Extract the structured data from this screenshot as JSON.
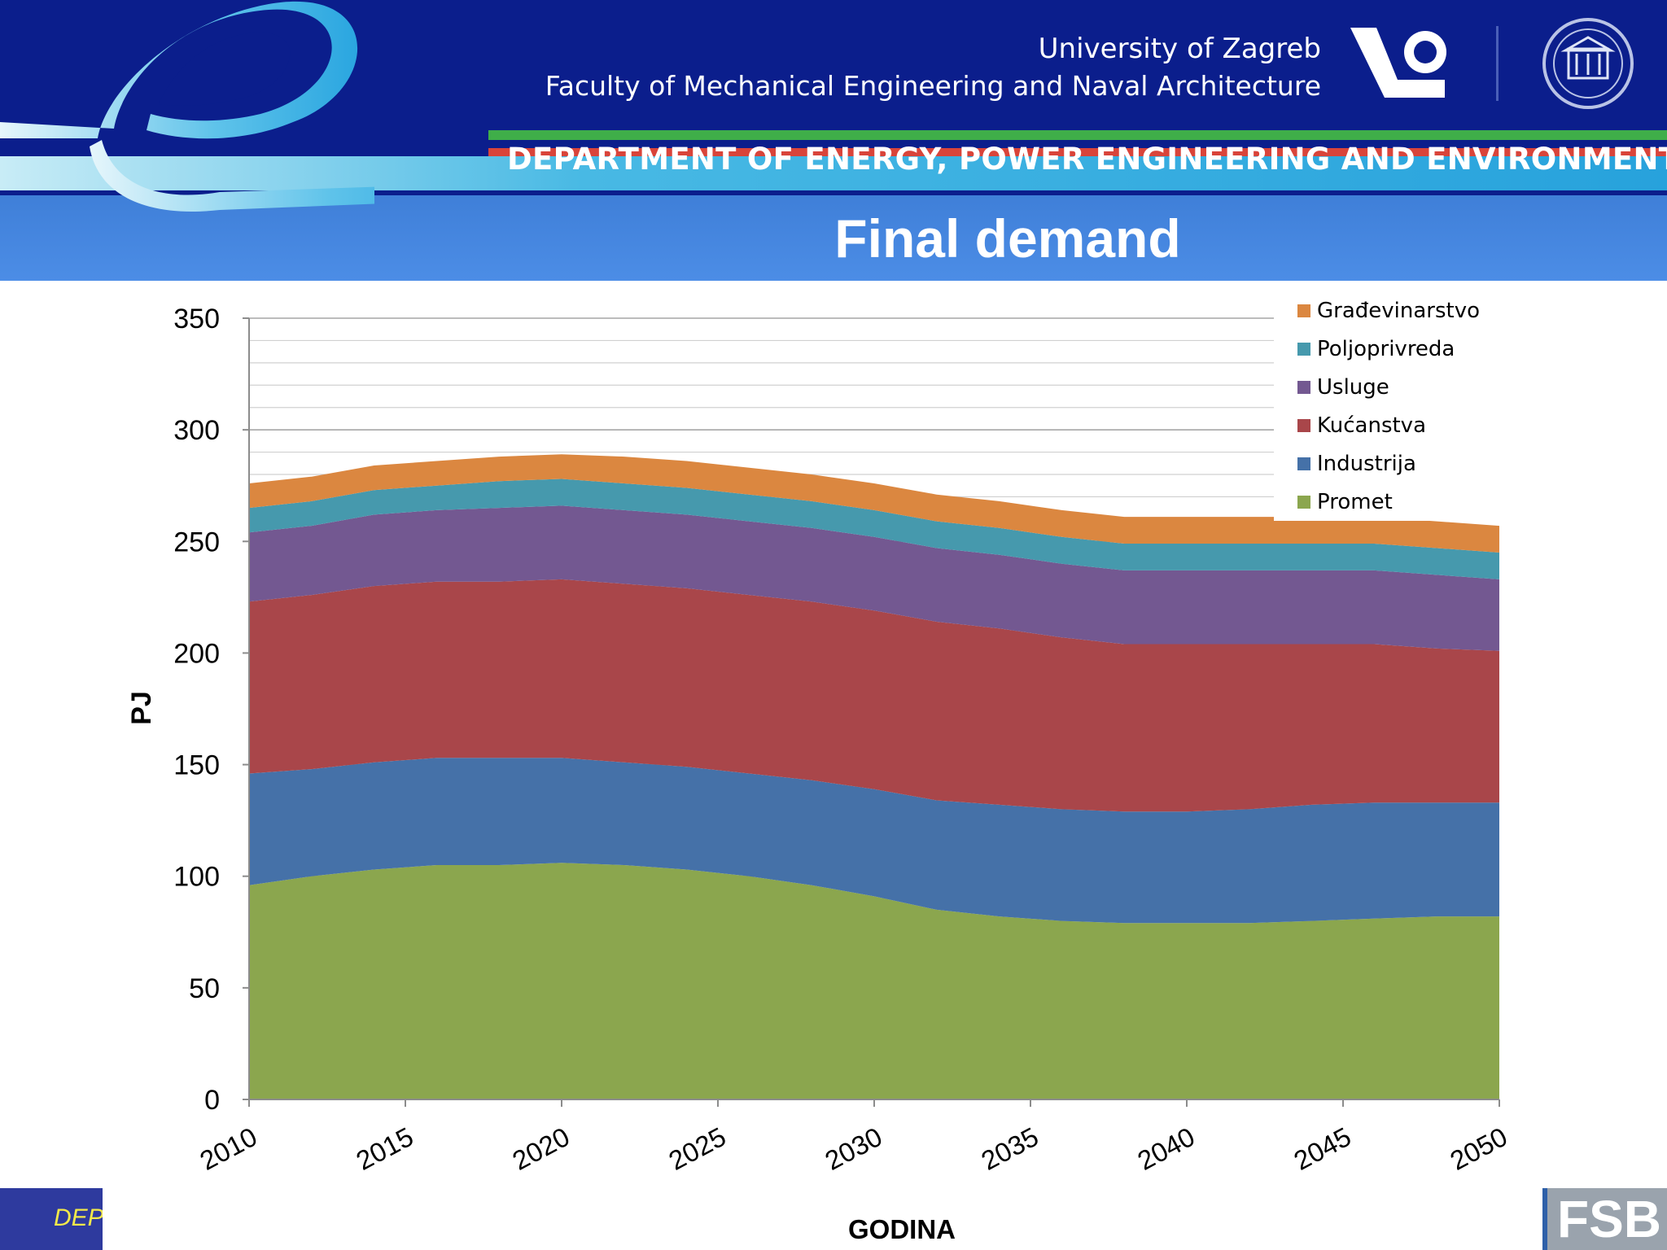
{
  "header": {
    "university": "University of Zagreb",
    "faculty": "Faculty of Mechanical Engineering and Naval Architecture",
    "department": "DEPARTMENT OF ENERGY, POWER ENGINEERING AND ENVIRONMENT",
    "title": "Final demand"
  },
  "footer": {
    "dept_text": "DEP",
    "logo_text": "FSB"
  },
  "colors": {
    "header_bg": "#0b1e8c",
    "title_band": "#4c8de6"
  },
  "chart_data": {
    "type": "area",
    "stacked": true,
    "title": "",
    "xlabel": "GODINA",
    "ylabel": "PJ",
    "ylim": [
      0,
      350
    ],
    "yticks": [
      0,
      50,
      100,
      150,
      200,
      250,
      300,
      350
    ],
    "xticks": [
      2010,
      2015,
      2020,
      2025,
      2030,
      2035,
      2040,
      2045,
      2050
    ],
    "minor_grid_step": 10,
    "legend_position": "top-right",
    "x": [
      2010,
      2012,
      2014,
      2016,
      2018,
      2020,
      2022,
      2024,
      2026,
      2028,
      2030,
      2032,
      2034,
      2036,
      2038,
      2040,
      2042,
      2044,
      2046,
      2048,
      2050
    ],
    "series": [
      {
        "name": "Promet",
        "color": "#8ba64e",
        "values": [
          96,
          100,
          103,
          105,
          105,
          106,
          105,
          103,
          100,
          96,
          91,
          85,
          82,
          80,
          79,
          79,
          79,
          80,
          81,
          82,
          82
        ]
      },
      {
        "name": "Industrija",
        "color": "#4571a8",
        "values": [
          50,
          48,
          48,
          48,
          48,
          47,
          46,
          46,
          46,
          47,
          48,
          49,
          50,
          50,
          50,
          50,
          51,
          52,
          52,
          51,
          51
        ]
      },
      {
        "name": "Kućanstva",
        "color": "#a9464a",
        "values": [
          77,
          78,
          79,
          79,
          79,
          80,
          80,
          80,
          80,
          80,
          80,
          80,
          79,
          77,
          75,
          75,
          74,
          72,
          71,
          69,
          68
        ]
      },
      {
        "name": "Usluge",
        "color": "#735891",
        "values": [
          31,
          31,
          32,
          32,
          33,
          33,
          33,
          33,
          33,
          33,
          33,
          33,
          33,
          33,
          33,
          33,
          33,
          33,
          33,
          33,
          32
        ]
      },
      {
        "name": "Poljoprivreda",
        "color": "#4699ad",
        "values": [
          11,
          11,
          11,
          11,
          12,
          12,
          12,
          12,
          12,
          12,
          12,
          12,
          12,
          12,
          12,
          12,
          12,
          12,
          12,
          12,
          12
        ]
      },
      {
        "name": "Građevinarstvo",
        "color": "#db8740",
        "values": [
          11,
          11,
          11,
          11,
          11,
          11,
          12,
          12,
          12,
          12,
          12,
          12,
          12,
          12,
          12,
          12,
          12,
          12,
          12,
          12,
          12
        ]
      }
    ]
  }
}
